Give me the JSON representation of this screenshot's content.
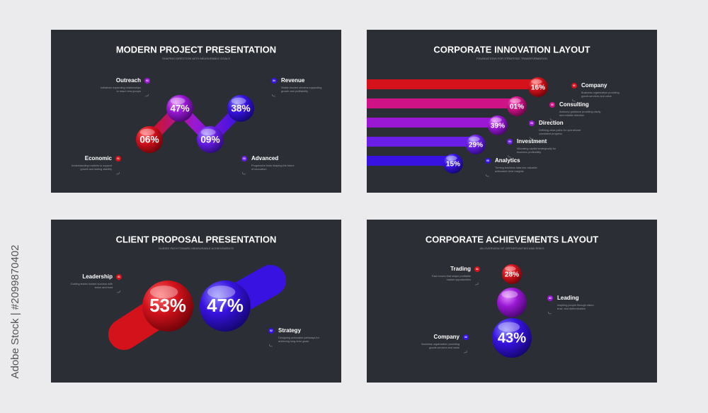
{
  "watermark_id": "Adobe Stock | #2099870402",
  "slides": [
    {
      "title": "MODERN PROJECT PRESENTATION",
      "subtitle": "SHAPING DIRECTION WITH MEASURABLE GOALS",
      "items": [
        {
          "badge": "01",
          "label": "Economic",
          "value": "06%",
          "description": [
            "Understanding markets to support",
            "growth and lasting stability"
          ]
        },
        {
          "badge": "02",
          "label": "Outreach",
          "value": "47%",
          "description": [
            "Initiatives expanding relationships",
            "to reach new groups"
          ]
        },
        {
          "badge": "03",
          "label": "Advanced",
          "value": "09%",
          "description": [
            "Progressive tools shaping the future",
            "of innovation"
          ]
        },
        {
          "badge": "04",
          "label": "Revenue",
          "value": "38%",
          "description": [
            "Stable income streams supporting",
            "growth and profitability"
          ]
        }
      ]
    },
    {
      "title": "CORPORATE INNOVATION LAYOUT",
      "subtitle": "FOUNDATIONS FOR STRATEGIC TRANSFORMATION",
      "items": [
        {
          "badge": "01",
          "label": "Company",
          "value": "16%",
          "description": [
            "Business organization providing",
            "goods services and value"
          ]
        },
        {
          "badge": "02",
          "label": "Consulting",
          "value": "01%",
          "description": [
            "Advisory guidance providing clarity",
            "and reliable direction"
          ]
        },
        {
          "badge": "03",
          "label": "Direction",
          "value": "39%",
          "description": [
            "Defining clear paths for operational",
            "consistent progress"
          ]
        },
        {
          "badge": "04",
          "label": "Investment",
          "value": "29%",
          "description": [
            "Allocating capital strategically for",
            "business profitability"
          ]
        },
        {
          "badge": "05",
          "label": "Analytics",
          "value": "15%",
          "description": [
            "Turning business data into valuable",
            "actionable clear insights"
          ]
        }
      ]
    },
    {
      "title": "CLIENT PROPOSAL PRESENTATION",
      "subtitle": "GUIDED PATH TOWARD MEASURABLE ACHIEVEMENTS",
      "items": [
        {
          "badge": "01",
          "label": "Leadership",
          "value": "53%",
          "description": [
            "Guiding teams toward success with",
            "vision and trust"
          ]
        },
        {
          "badge": "02",
          "label": "Strategy",
          "value": "47%",
          "description": [
            "Designing actionable pathways for",
            "achieving long-term goals"
          ]
        }
      ]
    },
    {
      "title": "CORPORATE ACHIEVEMENTS LAYOUT",
      "subtitle": "AN OVERVIEW OF OPPORTUNITIES AND RISKS",
      "items": [
        {
          "badge": "01",
          "label": "Trading",
          "value": "28%",
          "description": [
            "Fast moves that shape profitable",
            "market opportunities"
          ]
        },
        {
          "badge": "02",
          "label": "Leading",
          "description": [
            "Inspiring people through vision,",
            "trust, and determination"
          ]
        },
        {
          "badge": "03",
          "label": "Company",
          "value": "43%",
          "description": [
            "Business organization providing",
            "goods services and value"
          ]
        }
      ]
    }
  ]
}
